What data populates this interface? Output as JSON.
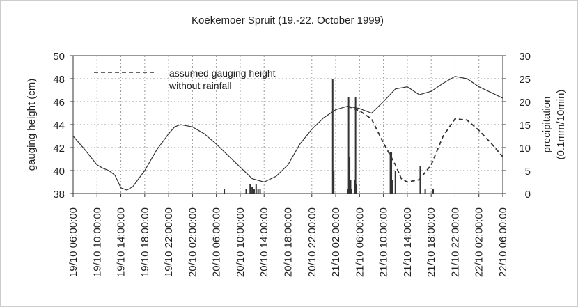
{
  "chart_data": {
    "type": "line",
    "title": "Koekemoer Spruit (19.-22. October 1999)",
    "ylabel": "gauging height  (cm)",
    "y2label": [
      "precipitation",
      "(0.1mm/10min)"
    ],
    "xlim": [
      "19/10 06:00:00",
      "22/10 06:00:00"
    ],
    "xticks": [
      "19/10 06:00:00",
      "19/10 10:00:00",
      "19/10 14:00:00",
      "19/10 18:00:00",
      "19/10 22:00:00",
      "20/10 02:00:00",
      "20/10 06:00:00",
      "20/10 10:00:00",
      "20/10 14:00:00",
      "20/10 18:00:00",
      "20/10 22:00:00",
      "21/10 02:00:00",
      "21/10 06:00:00",
      "21/10 10:00:00",
      "21/10 14:00:00",
      "21/10 18:00:00",
      "21/10 22:00:00",
      "22/10 02:00:00",
      "22/10 06:00:00"
    ],
    "ylim": [
      38,
      50
    ],
    "yticks": [
      38,
      40,
      42,
      44,
      46,
      48,
      50
    ],
    "y2lim": [
      0,
      30
    ],
    "y2ticks": [
      0,
      5,
      10,
      15,
      20,
      25,
      30
    ],
    "grid": true,
    "series": [
      {
        "color": "#333333",
        "x": [
          "19/10 06:00:00",
          "19/10 08:00:00",
          "19/10 10:00:00",
          "19/10 11:00:00",
          "19/10 12:00:00",
          "19/10 13:00:00",
          "19/10 14:00:00",
          "19/10 15:00:00",
          "19/10 16:00:00",
          "19/10 18:00:00",
          "19/10 20:00:00",
          "19/10 22:00:00",
          "19/10 23:00:00",
          "20/10 00:00:00",
          "20/10 02:00:00",
          "20/10 04:00:00",
          "20/10 06:00:00",
          "20/10 08:00:00",
          "20/10 10:00:00",
          "20/10 12:00:00",
          "20/10 14:00:00",
          "20/10 16:00:00",
          "20/10 18:00:00",
          "20/10 20:00:00",
          "20/10 22:00:00",
          "21/10 00:00:00",
          "21/10 02:00:00",
          "21/10 04:00:00",
          "21/10 06:00:00",
          "21/10 08:00:00",
          "21/10 10:00:00",
          "21/10 12:00:00",
          "21/10 14:00:00",
          "21/10 16:00:00",
          "21/10 18:00:00",
          "21/10 20:00:00",
          "21/10 22:00:00",
          "22/10 00:00:00",
          "22/10 02:00:00",
          "22/10 04:00:00",
          "22/10 06:00:00"
        ],
        "values": [
          43.0,
          41.8,
          40.5,
          40.2,
          40.0,
          39.6,
          38.5,
          38.3,
          38.6,
          40.0,
          41.8,
          43.2,
          43.8,
          44.0,
          43.8,
          43.2,
          42.3,
          41.3,
          40.3,
          39.3,
          39.0,
          39.5,
          40.5,
          42.3,
          43.6,
          44.6,
          45.3,
          45.6,
          45.4,
          45.0,
          46.0,
          47.1,
          47.3,
          46.6,
          46.9,
          47.6,
          48.2,
          48.0,
          47.3,
          46.8,
          46.3
        ]
      },
      {
        "name": "assumed gauging height without rainfall",
        "color": "#333333",
        "dash": true,
        "x": [
          "21/10 04:00:00",
          "21/10 06:00:00",
          "21/10 08:00:00",
          "21/10 10:00:00",
          "21/10 12:00:00",
          "21/10 13:00:00",
          "21/10 14:00:00",
          "21/10 16:00:00",
          "21/10 18:00:00",
          "21/10 20:00:00",
          "21/10 22:00:00",
          "22/10 00:00:00",
          "22/10 02:00:00",
          "22/10 04:00:00",
          "22/10 06:00:00"
        ],
        "values": [
          45.6,
          45.2,
          44.5,
          42.4,
          40.5,
          39.3,
          39.0,
          39.2,
          40.5,
          43.0,
          44.5,
          44.4,
          43.5,
          42.4,
          41.2
        ]
      },
      {
        "type": "bar",
        "axis": "y2",
        "color": "#333333",
        "x": [
          "20/10 07:20:00",
          "20/10 11:00:00",
          "20/10 11:40:00",
          "20/10 12:00:00",
          "20/10 12:20:00",
          "20/10 12:40:00",
          "20/10 13:00:00",
          "20/10 13:20:00",
          "21/10 01:30:00",
          "21/10 01:40:00",
          "21/10 04:00:00",
          "21/10 04:10:00",
          "21/10 04:20:00",
          "21/10 04:30:00",
          "21/10 04:40:00",
          "21/10 05:10:00",
          "21/10 05:20:00",
          "21/10 05:30:00",
          "21/10 11:10:00",
          "21/10 11:20:00",
          "21/10 11:30:00",
          "21/10 12:00:00",
          "21/10 16:10:00",
          "21/10 17:00:00",
          "21/10 18:20:00"
        ],
        "values": [
          1,
          1,
          2,
          1.5,
          1,
          2,
          1,
          1,
          25,
          5,
          1,
          21,
          8,
          3,
          1,
          3,
          21,
          2,
          9,
          9,
          3,
          5,
          6,
          1,
          1
        ]
      }
    ]
  }
}
